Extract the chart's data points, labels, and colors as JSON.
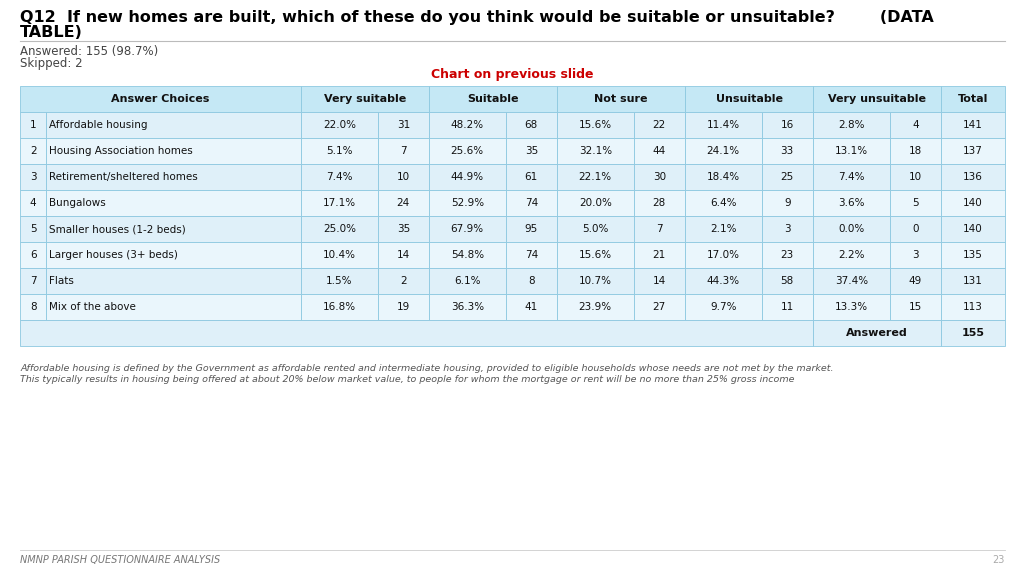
{
  "title_line1": "Q12  If new homes are built, which of these do you think would be suitable or unsuitable?        (DATA",
  "title_line2": "TABLE)",
  "answered": "Answered: 155 (98.7%)",
  "skipped": "Skipped: 2",
  "chart_note": "Chart on previous slide",
  "footnote1": "Affordable housing is defined by the Government as affordable rented and intermediate housing, provided to eligible households whose needs are not met by the market.",
  "footnote2": "This typically results in housing being offered at about 20% below market value, to people for whom the mortgage or rent will be no more than 25% gross income",
  "footer": "NMNP PARISH QUESTIONNAIRE ANALYSIS",
  "page": "23",
  "rows": [
    {
      "num": "1",
      "label": "Affordable housing",
      "vs_pct": "22.0%",
      "vs_n": "31",
      "s_pct": "48.2%",
      "s_n": "68",
      "ns_pct": "15.6%",
      "ns_n": "22",
      "u_pct": "11.4%",
      "u_n": "16",
      "vu_pct": "2.8%",
      "vu_n": "4",
      "total": "141"
    },
    {
      "num": "2",
      "label": "Housing Association homes",
      "vs_pct": "5.1%",
      "vs_n": "7",
      "s_pct": "25.6%",
      "s_n": "35",
      "ns_pct": "32.1%",
      "ns_n": "44",
      "u_pct": "24.1%",
      "u_n": "33",
      "vu_pct": "13.1%",
      "vu_n": "18",
      "total": "137"
    },
    {
      "num": "3",
      "label": "Retirement/sheltered homes",
      "vs_pct": "7.4%",
      "vs_n": "10",
      "s_pct": "44.9%",
      "s_n": "61",
      "ns_pct": "22.1%",
      "ns_n": "30",
      "u_pct": "18.4%",
      "u_n": "25",
      "vu_pct": "7.4%",
      "vu_n": "10",
      "total": "136"
    },
    {
      "num": "4",
      "label": "Bungalows",
      "vs_pct": "17.1%",
      "vs_n": "24",
      "s_pct": "52.9%",
      "s_n": "74",
      "ns_pct": "20.0%",
      "ns_n": "28",
      "u_pct": "6.4%",
      "u_n": "9",
      "vu_pct": "3.6%",
      "vu_n": "5",
      "total": "140"
    },
    {
      "num": "5",
      "label": "Smaller houses (1-2 beds)",
      "vs_pct": "25.0%",
      "vs_n": "35",
      "s_pct": "67.9%",
      "s_n": "95",
      "ns_pct": "5.0%",
      "ns_n": "7",
      "u_pct": "2.1%",
      "u_n": "3",
      "vu_pct": "0.0%",
      "vu_n": "0",
      "total": "140"
    },
    {
      "num": "6",
      "label": "Larger houses (3+ beds)",
      "vs_pct": "10.4%",
      "vs_n": "14",
      "s_pct": "54.8%",
      "s_n": "74",
      "ns_pct": "15.6%",
      "ns_n": "21",
      "u_pct": "17.0%",
      "u_n": "23",
      "vu_pct": "2.2%",
      "vu_n": "3",
      "total": "135"
    },
    {
      "num": "7",
      "label": "Flats",
      "vs_pct": "1.5%",
      "vs_n": "2",
      "s_pct": "6.1%",
      "s_n": "8",
      "ns_pct": "10.7%",
      "ns_n": "14",
      "u_pct": "44.3%",
      "u_n": "58",
      "vu_pct": "37.4%",
      "vu_n": "49",
      "total": "131"
    },
    {
      "num": "8",
      "label": "Mix of the above",
      "vs_pct": "16.8%",
      "vs_n": "19",
      "s_pct": "36.3%",
      "s_n": "41",
      "ns_pct": "23.9%",
      "ns_n": "27",
      "u_pct": "9.7%",
      "u_n": "11",
      "vu_pct": "13.3%",
      "vu_n": "15",
      "total": "113"
    }
  ],
  "header_bg": "#c5e8f5",
  "row_bg_odd": "#dff0f9",
  "row_bg_even": "#eaf6fc",
  "border_color": "#8dc8e0",
  "chart_note_color": "#cc0000",
  "footnote_color": "#555555",
  "footer_color": "#777777",
  "title_color": "#000000",
  "page_number_color": "#aaaaaa",
  "answered_color": "#444444"
}
